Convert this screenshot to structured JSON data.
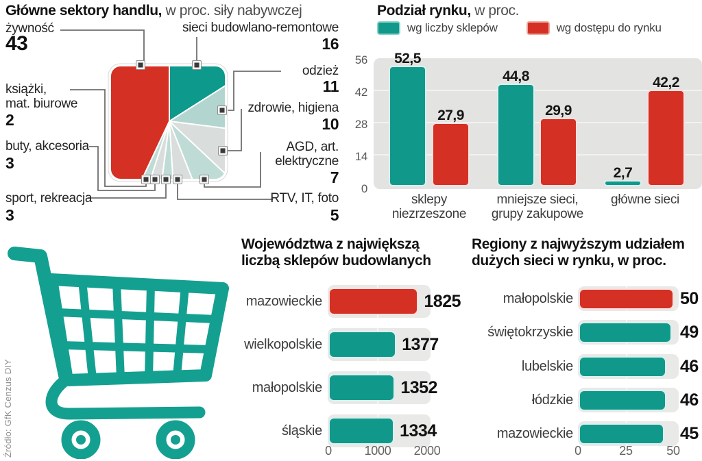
{
  "source": "Źródło: GfK Cenzus DIY",
  "colors": {
    "teal": "#10998b",
    "red": "#d43023",
    "mint": "#b2d6cf",
    "mint_light": "#bedcd5",
    "pale_gray": "#d9dddc",
    "plot_bg": "#e3e3e2"
  },
  "chart_data": [
    {
      "id": "main-sectors",
      "type": "pie",
      "title": "Główne sektory handlu,",
      "subtitle": "w proc. siły nabywczej",
      "segments": [
        {
          "lines": [
            "sieci budowlano-remontowe"
          ],
          "value": 16,
          "display": "16",
          "color": "#0d998b"
        },
        {
          "lines": [
            "odzież"
          ],
          "value": 11,
          "display": "11",
          "color": "#b2d6cf"
        },
        {
          "lines": [
            "zdrowie, higiena"
          ],
          "value": 10,
          "display": "10",
          "color": "#d9dddc"
        },
        {
          "lines": [
            "AGD, art.",
            "elektryczne"
          ],
          "value": 7,
          "display": "7",
          "color": "#bedcd5"
        },
        {
          "lines": [
            "RTV, IT, foto"
          ],
          "value": 5,
          "display": "5",
          "color": "#d9dddc"
        },
        {
          "lines": [
            "sport, rekreacja"
          ],
          "value": 3,
          "display": "3",
          "color": "#bedcd5"
        },
        {
          "lines": [
            "buty, akcesoria"
          ],
          "value": 3,
          "display": "3",
          "color": "#d9dddc"
        },
        {
          "lines": [
            "książki,",
            "mat. biurowe"
          ],
          "value": 2,
          "display": "2",
          "color": "#bedcd5"
        },
        {
          "lines": [
            "żywność"
          ],
          "value": 43,
          "display": "43",
          "color": "#d43023"
        }
      ]
    },
    {
      "id": "market-split",
      "type": "bar",
      "title": "Podział rynku,",
      "subtitle": "w proc.",
      "categories": [
        [
          "sklepy",
          "niezrzeszone"
        ],
        [
          "mniejsze sieci,",
          "grupy zakupowe"
        ],
        [
          "główne sieci"
        ]
      ],
      "series": [
        {
          "name": "wg liczby sklepów",
          "color": "#10998b",
          "values": [
            52.5,
            44.8,
            2.7
          ],
          "displays": [
            "52,5",
            "44,8",
            "2,7"
          ]
        },
        {
          "name": "wg dostępu do rynku",
          "color": "#d43023",
          "values": [
            27.9,
            29.9,
            42.2
          ],
          "displays": [
            "27,9",
            "29,9",
            "42,2"
          ]
        }
      ],
      "ylim": [
        0,
        56
      ],
      "yticks": [
        0,
        14,
        28,
        42,
        56
      ],
      "grid": true,
      "legend_position": "top"
    },
    {
      "id": "voivodeships-diy-shops",
      "type": "bar-horizontal",
      "title_lines": [
        "Województwa z największą",
        "liczbą sklepów budowlanych"
      ],
      "categories": [
        "mazowieckie",
        "wielkopolskie",
        "małopolskie",
        "śląskie"
      ],
      "values": [
        1825,
        1377,
        1352,
        1334
      ],
      "displays": [
        "1825",
        "1377",
        "1352",
        "1334"
      ],
      "colors": [
        "#d43023",
        "#10998b",
        "#10998b",
        "#10998b"
      ],
      "xlim": [
        0,
        2000
      ],
      "xticks": [
        "0",
        "1000",
        "2000"
      ]
    },
    {
      "id": "regions-big-chains-share",
      "type": "bar-horizontal",
      "title_lines": [
        "Regiony z najwyższym udziałem",
        "dużych sieci w rynku, w proc."
      ],
      "categories": [
        "małopolskie",
        "świętokrzyskie",
        "lubelskie",
        "łódzkie",
        "mazowieckie"
      ],
      "values": [
        50,
        49,
        46,
        46,
        45
      ],
      "displays": [
        "50",
        "49",
        "46",
        "46",
        "45"
      ],
      "colors": [
        "#d43023",
        "#10998b",
        "#10998b",
        "#10998b",
        "#10998b"
      ],
      "xlim": [
        0,
        50
      ],
      "xticks": [
        "0",
        "25",
        "50"
      ]
    }
  ]
}
